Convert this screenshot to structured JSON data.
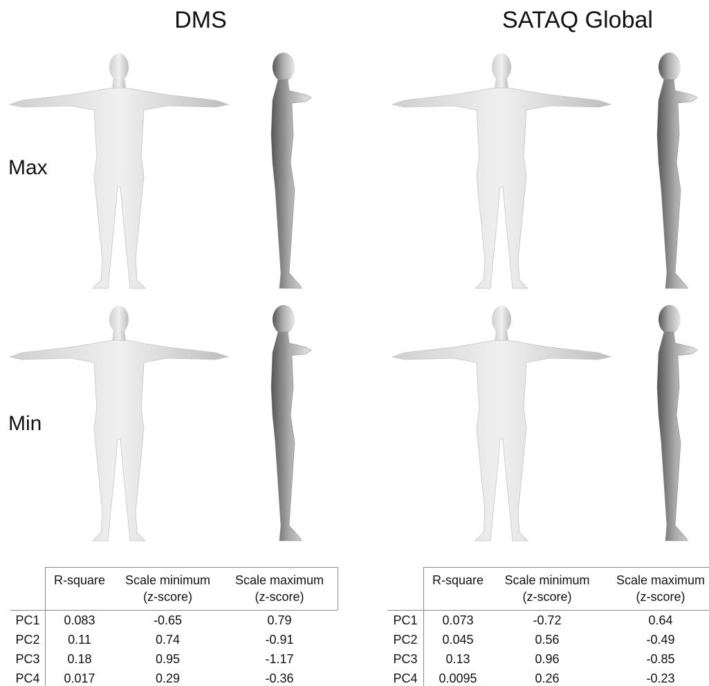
{
  "panels": [
    {
      "title": "DMS",
      "table": {
        "header": [
          [
            "R-square"
          ],
          [
            "Scale minimum",
            "(z-score)"
          ],
          [
            "Scale maximum",
            "(z-score)"
          ]
        ],
        "rows": [
          [
            "PC1",
            "0.083",
            "-0.65",
            "0.79"
          ],
          [
            "PC2",
            "0.11",
            "0.74",
            "-0.91"
          ],
          [
            "PC3",
            "0.18",
            "0.95",
            "-1.17"
          ],
          [
            "PC4",
            "0.017",
            "0.29",
            "-0.36"
          ]
        ]
      }
    },
    {
      "title": "SATAQ Global",
      "table": {
        "header": [
          [
            "R-square"
          ],
          [
            "Scale minimum",
            "(z-score)"
          ],
          [
            "Scale maximum",
            "(z-score)"
          ]
        ],
        "rows": [
          [
            "PC1",
            "0.073",
            "-0.72",
            "0.64"
          ],
          [
            "PC2",
            "0.045",
            "0.56",
            "-0.49"
          ],
          [
            "PC3",
            "0.13",
            "0.96",
            "-0.85"
          ],
          [
            "PC4",
            "0.0095",
            "0.26",
            "-0.23"
          ]
        ]
      }
    }
  ],
  "row_labels": [
    "Max",
    "Min"
  ]
}
